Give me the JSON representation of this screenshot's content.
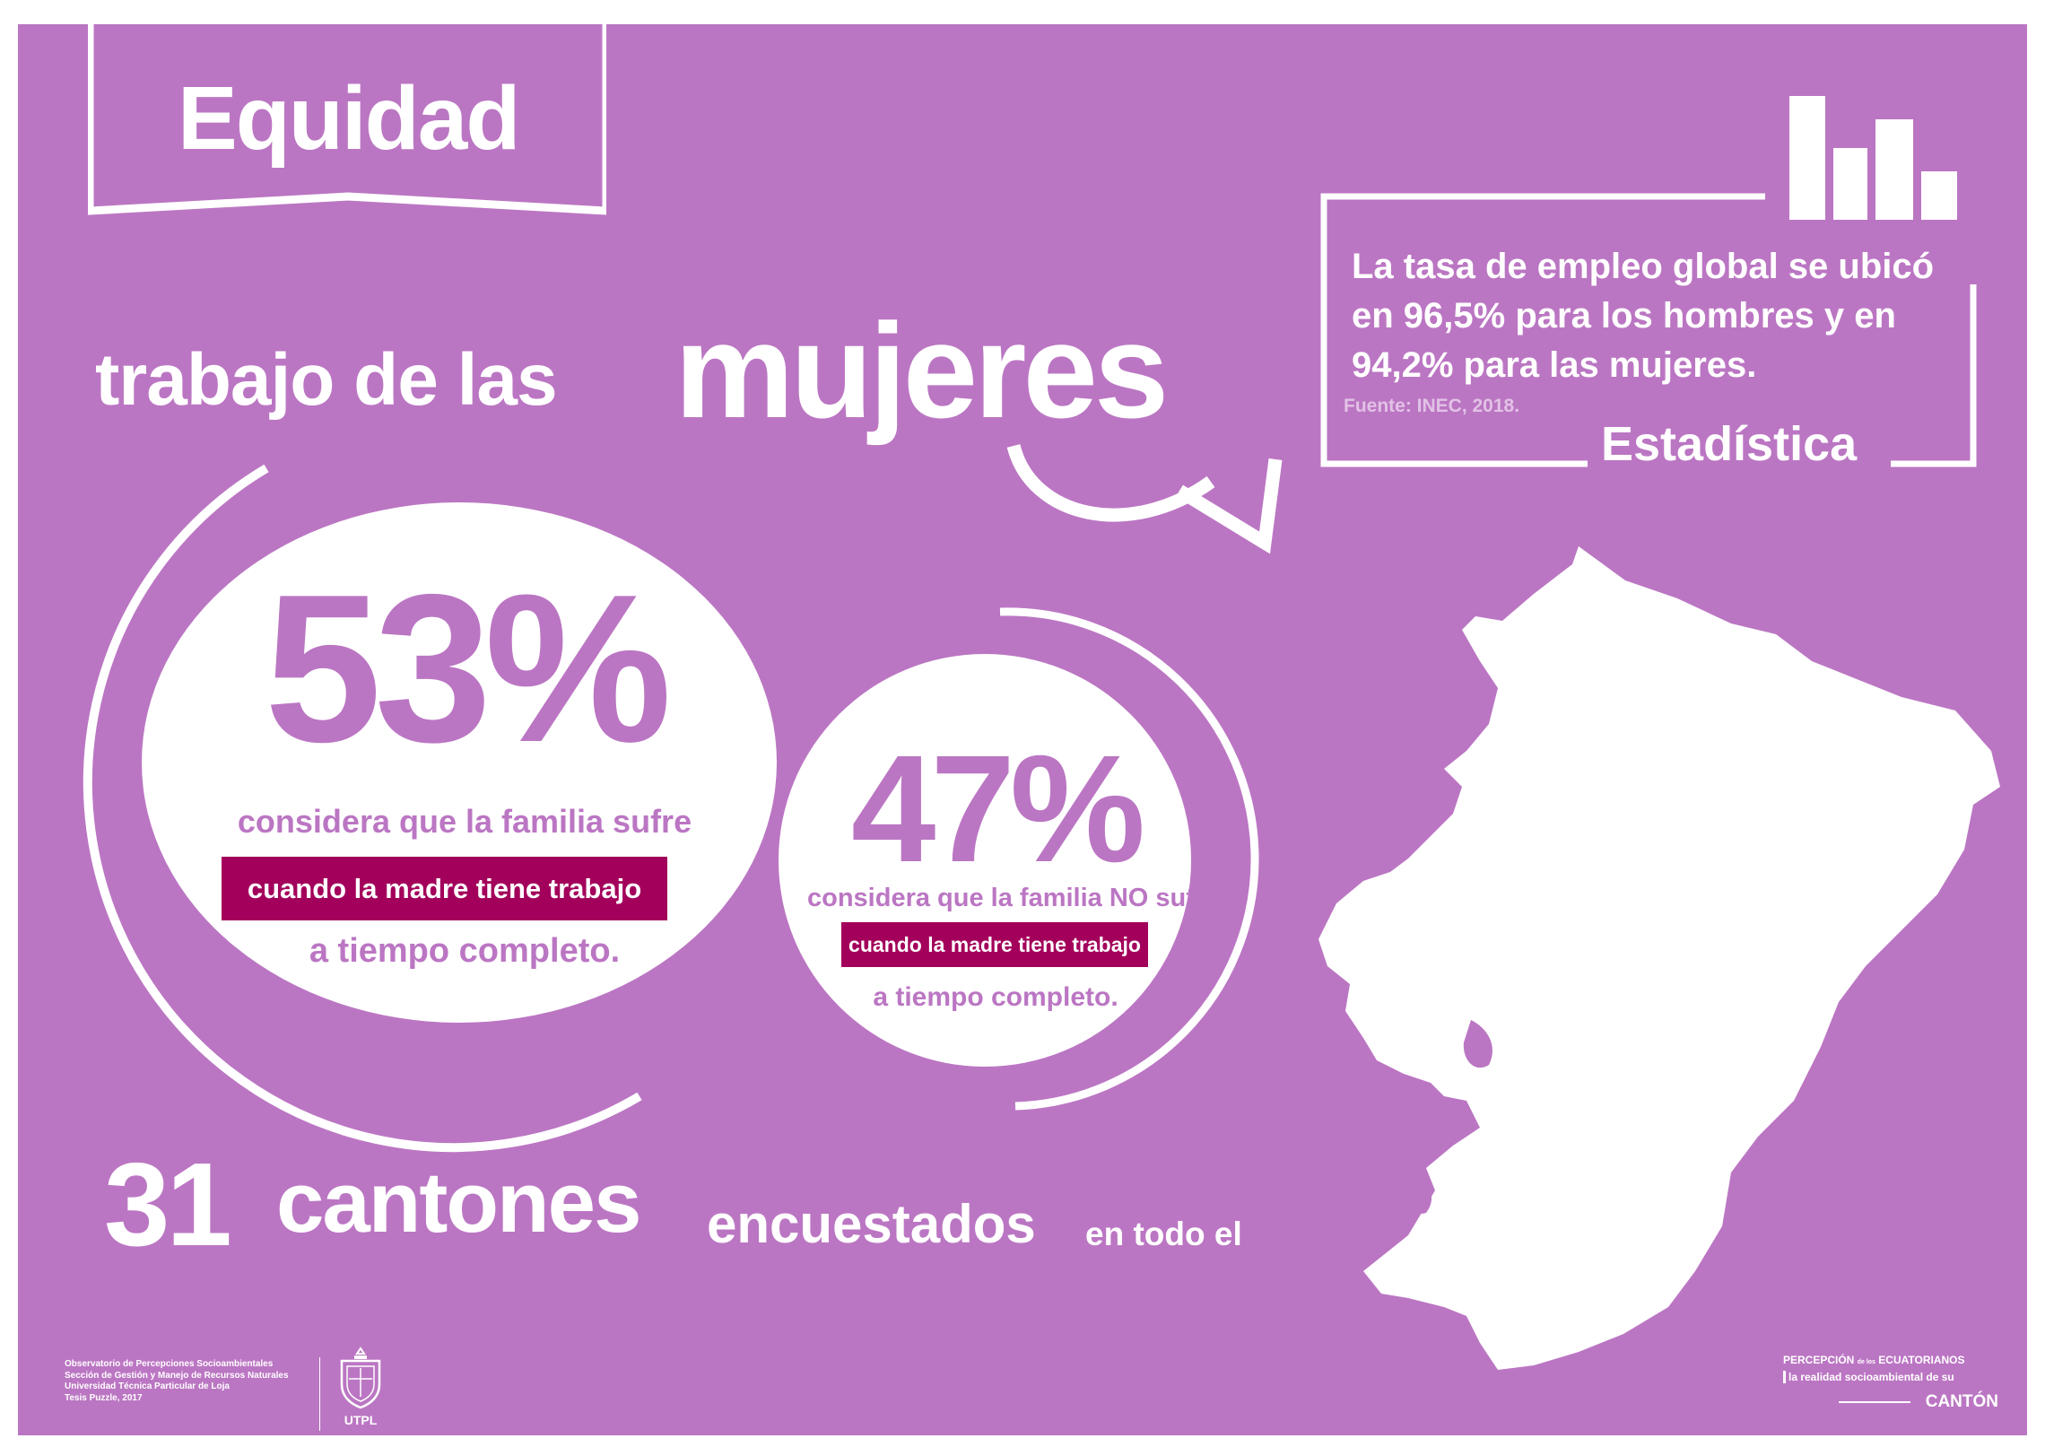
{
  "header": {
    "title": "Equidad"
  },
  "headline": {
    "part1": "trabajo de las",
    "part2": "mujeres"
  },
  "statistic": {
    "text": "La tasa de empleo global se ubicó en 96,5% para los hombres y en 94,2% para las mujeres.",
    "source": "Fuente: INEC, 2018.",
    "label": "Estadística",
    "icon": "bar-chart-icon"
  },
  "stat_big": {
    "percent": "53%",
    "line1": "considera que la familia sufre",
    "highlight": "cuando la madre tiene trabajo",
    "line3": "a tiempo completo."
  },
  "stat_small": {
    "percent": "47%",
    "line1": "considera que la familia NO sufre",
    "highlight": "cuando la madre tiene trabajo",
    "line3": "a tiempo completo."
  },
  "bottom": {
    "number": "31",
    "word1": "cantones",
    "word2": "encuestados",
    "word3": "en todo el"
  },
  "footer": {
    "credits": [
      "Observatorio de Percepciones Socioambientales",
      "Sección de Gestión y Manejo de Recursos Naturales",
      "Universidad Técnica Particular de Loja",
      "Tesis Puzzle, 2017"
    ],
    "logo_label": "UTPL",
    "brand_line1a": "PERCEPCIÓN",
    "brand_line1b": "de los",
    "brand_line1c": "ECUATORIANOS",
    "brand_line2": "la realidad socioambiental de su",
    "brand_line3": "CANTÓN"
  },
  "colors": {
    "background": "#bb76c3",
    "highlight": "#a3005b",
    "text": "#ffffff"
  }
}
